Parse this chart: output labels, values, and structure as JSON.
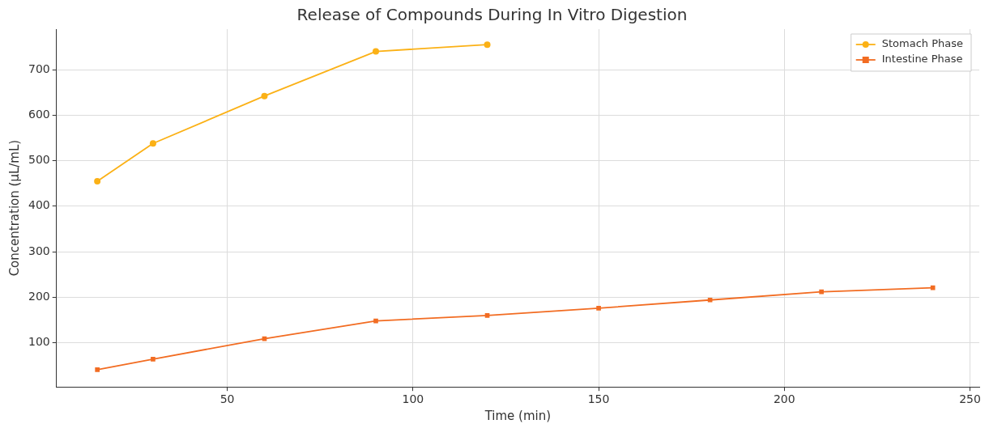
{
  "chart_data": {
    "type": "line",
    "title": "Release of Compounds During In Vitro Digestion",
    "xlabel": "Time (min)",
    "ylabel": "Concentration (µL/mL)",
    "xlim": [
      4,
      252.5
    ],
    "xticks": [
      50,
      100,
      150,
      200,
      250
    ],
    "ylim": [
      3,
      789
    ],
    "yticks": [
      100,
      200,
      300,
      400,
      500,
      600,
      700
    ],
    "grid": true,
    "legend": "top right",
    "line_style": "solid",
    "series": [
      {
        "name": "Stomach Phase",
        "color": "#fbb116",
        "marker": "circle",
        "x": [
          15,
          30,
          60,
          90,
          120
        ],
        "values": [
          455,
          538,
          642,
          740,
          755
        ]
      },
      {
        "name": "Intestine Phase",
        "color": "#f26c22",
        "marker": "square",
        "x": [
          15,
          30,
          60,
          90,
          120,
          150,
          180,
          210,
          240
        ],
        "values": [
          41,
          64,
          109,
          148,
          160,
          176,
          194,
          212,
          221
        ]
      }
    ]
  }
}
